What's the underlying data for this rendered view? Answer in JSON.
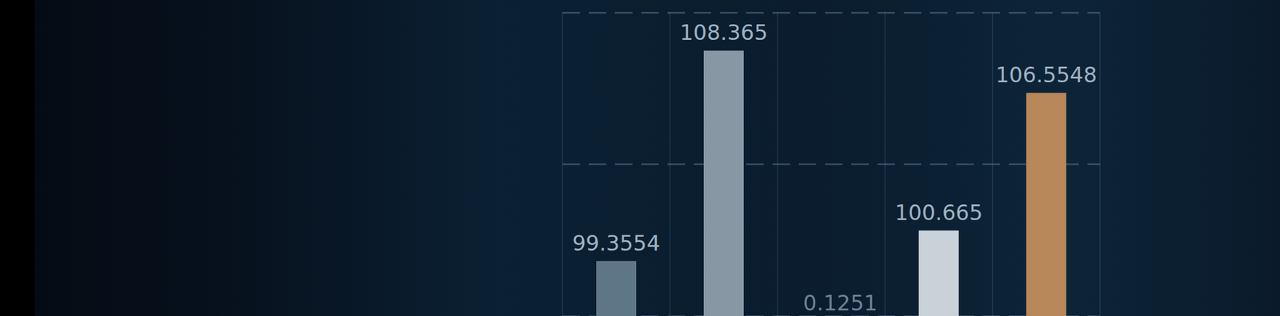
{
  "chart_data": {
    "type": "bar",
    "categories": [
      null,
      null,
      null,
      null,
      null
    ],
    "values": [
      99.3554,
      108.365,
      null,
      100.665,
      106.5548
    ],
    "colors": [
      "#5f7687",
      "#8797a3",
      "#5f7687",
      "#c9d2d9",
      "#b8875a"
    ],
    "annotations": [
      "0.1251"
    ],
    "ylim": [
      97,
      110
    ],
    "yticks": [
      97,
      103.5,
      110
    ],
    "grid": true,
    "data_labels": true,
    "tick_labels": false
  }
}
